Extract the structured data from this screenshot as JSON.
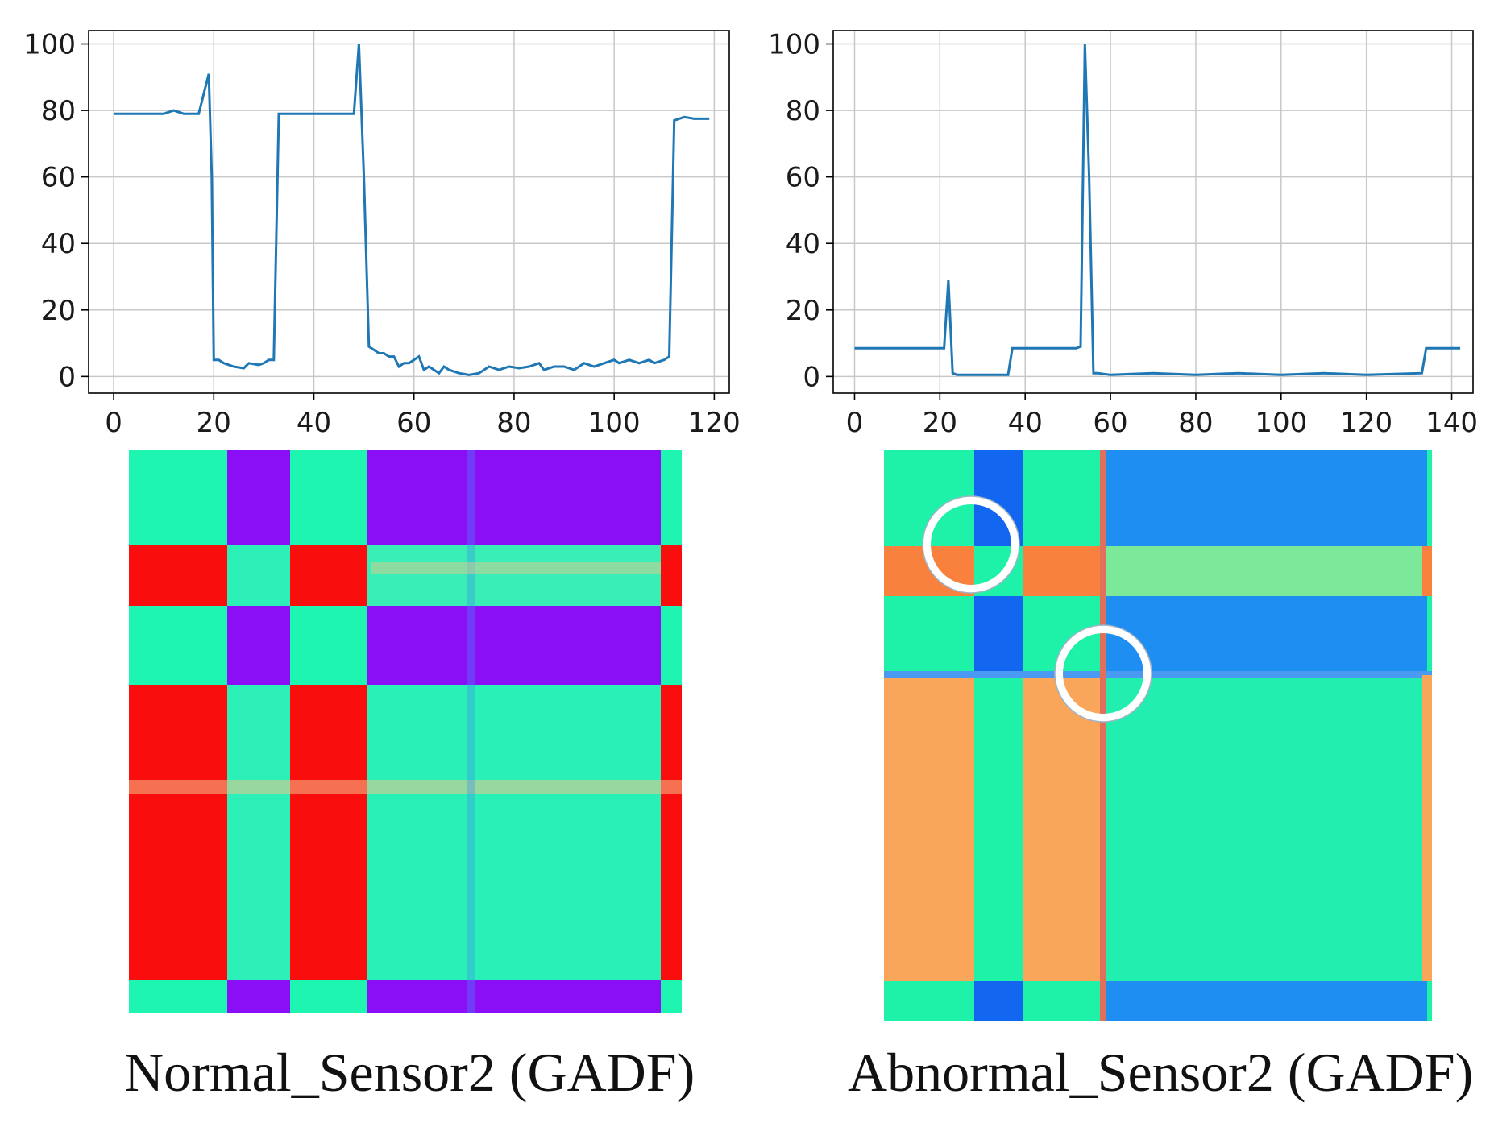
{
  "chart_data": [
    {
      "type": "line",
      "title": "",
      "xlabel": "",
      "ylabel": "",
      "xlim": [
        -5,
        123
      ],
      "ylim": [
        -5,
        104
      ],
      "xticks": [
        0,
        20,
        40,
        60,
        80,
        100,
        120
      ],
      "yticks": [
        0,
        20,
        40,
        60,
        80,
        100
      ],
      "grid": true,
      "series": [
        {
          "name": "Normal_Sensor2",
          "color": "#1f77b4",
          "points": [
            [
              0,
              79
            ],
            [
              10,
              79
            ],
            [
              12,
              80
            ],
            [
              14,
              79
            ],
            [
              17,
              79
            ],
            [
              18,
              85
            ],
            [
              19,
              91
            ],
            [
              19.6,
              60
            ],
            [
              20,
              5
            ],
            [
              21,
              5
            ],
            [
              22,
              4
            ],
            [
              24,
              3
            ],
            [
              26,
              2.5
            ],
            [
              27,
              4
            ],
            [
              29,
              3.5
            ],
            [
              30,
              4
            ],
            [
              31,
              5
            ],
            [
              32,
              5
            ],
            [
              33,
              79
            ],
            [
              35,
              79
            ],
            [
              48,
              79
            ],
            [
              49,
              100
            ],
            [
              50,
              60
            ],
            [
              51,
              9
            ],
            [
              52,
              8
            ],
            [
              53,
              7
            ],
            [
              54,
              7
            ],
            [
              55,
              6
            ],
            [
              56,
              6
            ],
            [
              57,
              3
            ],
            [
              58,
              4
            ],
            [
              59,
              4
            ],
            [
              60,
              5
            ],
            [
              61,
              6
            ],
            [
              62,
              2
            ],
            [
              63,
              3
            ],
            [
              64,
              2
            ],
            [
              65,
              1
            ],
            [
              66,
              3
            ],
            [
              67,
              2
            ],
            [
              69,
              1
            ],
            [
              71,
              0.5
            ],
            [
              73,
              1
            ],
            [
              75,
              3
            ],
            [
              77,
              2
            ],
            [
              79,
              3
            ],
            [
              81,
              2.5
            ],
            [
              83,
              3
            ],
            [
              85,
              4
            ],
            [
              86,
              2
            ],
            [
              88,
              3
            ],
            [
              90,
              3
            ],
            [
              92,
              2
            ],
            [
              94,
              4
            ],
            [
              96,
              3
            ],
            [
              98,
              4
            ],
            [
              100,
              5
            ],
            [
              101,
              4
            ],
            [
              103,
              5
            ],
            [
              105,
              4
            ],
            [
              107,
              5
            ],
            [
              108,
              4
            ],
            [
              110,
              5
            ],
            [
              111,
              6
            ],
            [
              112,
              77
            ],
            [
              114,
              78
            ],
            [
              116,
              77.5
            ],
            [
              119,
              77.5
            ]
          ]
        }
      ]
    },
    {
      "type": "line",
      "title": "",
      "xlabel": "",
      "ylabel": "",
      "xlim": [
        -5,
        145
      ],
      "ylim": [
        -5,
        104
      ],
      "xticks": [
        0,
        20,
        40,
        60,
        80,
        100,
        120,
        140
      ],
      "yticks": [
        0,
        20,
        40,
        60,
        80,
        100
      ],
      "grid": true,
      "series": [
        {
          "name": "Abnormal_Sensor2",
          "color": "#1f77b4",
          "points": [
            [
              0,
              8.5
            ],
            [
              10,
              8.5
            ],
            [
              21,
              8.5
            ],
            [
              22,
              29
            ],
            [
              23,
              1
            ],
            [
              24,
              0.5
            ],
            [
              36,
              0.5
            ],
            [
              37,
              8.5
            ],
            [
              52,
              8.5
            ],
            [
              53,
              9
            ],
            [
              54,
              100
            ],
            [
              55,
              60
            ],
            [
              56,
              1
            ],
            [
              57,
              1
            ],
            [
              60,
              0.5
            ],
            [
              70,
              1
            ],
            [
              80,
              0.5
            ],
            [
              90,
              1
            ],
            [
              100,
              0.5
            ],
            [
              110,
              1
            ],
            [
              120,
              0.5
            ],
            [
              133,
              1
            ],
            [
              134,
              8.5
            ],
            [
              142,
              8.5
            ]
          ]
        }
      ]
    }
  ],
  "heatmaps": [
    {
      "caption": "Normal_Sensor2 (GADF)",
      "colors": {
        "teal": "#1df5b0",
        "violet": "#8a0ff7",
        "red": "#fa0d0d",
        "peach": "#f2c58a",
        "blue": "#3fb0f4"
      }
    },
    {
      "caption": "Abnormal_Sensor2 (GADF)",
      "colors": {
        "teal": "#1ef2a8",
        "blue": "#1f8ef2",
        "deep": "#1366ef",
        "orange": "#f7813d",
        "lightorange": "#f9a65a",
        "lightgreen": "#7be89a",
        "ring": "#ffffff"
      }
    }
  ]
}
